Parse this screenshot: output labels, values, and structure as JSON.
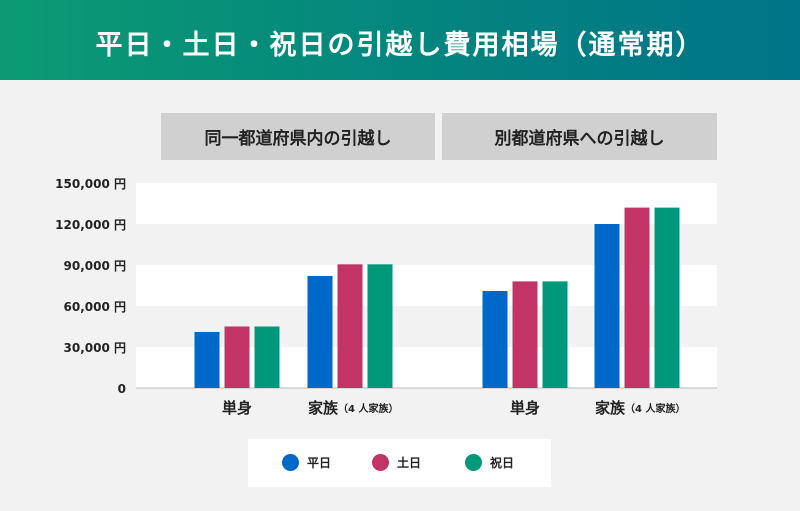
{
  "header": {
    "title": "平日・土日・祝日の引越し費用相場（通常期）"
  },
  "groups": [
    "同一都道府県内の引越し",
    "別都道府県への引越し"
  ],
  "chart_data": {
    "type": "bar",
    "yticks": [
      "150,000 円",
      "120,000 円",
      "90,000 円",
      "60,000 円",
      "30,000 円",
      "0"
    ],
    "ylim": [
      0,
      150000
    ],
    "grid": "alternating horizontal bands",
    "categories": [
      {
        "group": "同一都道府県内の引越し",
        "label": "単身",
        "sub": ""
      },
      {
        "group": "同一都道府県内の引越し",
        "label": "家族",
        "sub": "（4 人家族）"
      },
      {
        "group": "別都道府県への引越し",
        "label": "単身",
        "sub": ""
      },
      {
        "group": "別都道府県への引越し",
        "label": "家族",
        "sub": "（4 人家族）"
      }
    ],
    "series": [
      {
        "name": "平日",
        "color": "#0068c9",
        "values": [
          41000,
          82000,
          71000,
          120000
        ]
      },
      {
        "name": "土日",
        "color": "#c23466",
        "values": [
          45000,
          90500,
          78000,
          132000
        ]
      },
      {
        "name": "祝日",
        "color": "#00987a",
        "values": [
          45000,
          90500,
          78000,
          132000
        ]
      }
    ],
    "legend_position": "bottom"
  }
}
